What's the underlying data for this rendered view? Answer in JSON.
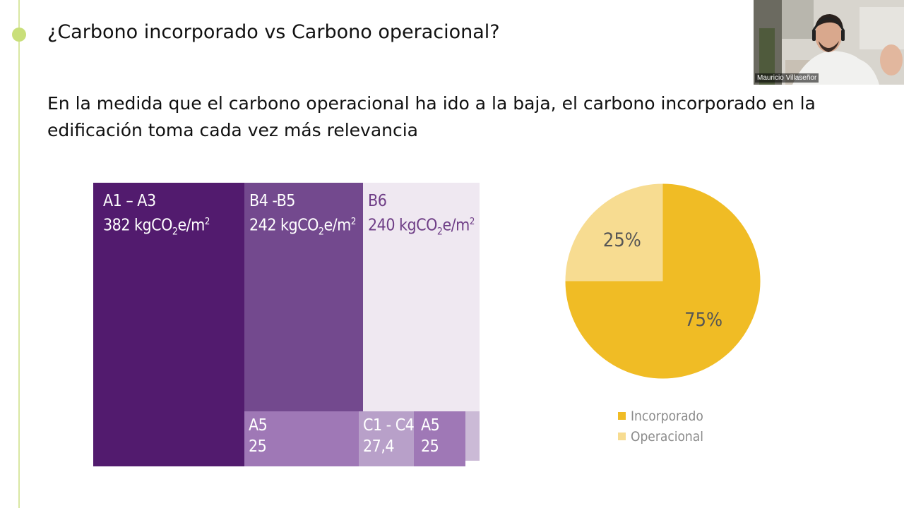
{
  "slide": {
    "title": "¿Carbono incorporado vs Carbono operacional?",
    "subtitle": "En la medida que el carbono operacional ha ido a la baja, el carbono incorporado en la edificación toma cada vez más relevancia"
  },
  "treemap": {
    "tiles": [
      {
        "label": "A1 – A3",
        "value_text": "382 kgCO",
        "unit_sub": "2",
        "unit_rest": "e/m",
        "unit_sup": "2"
      },
      {
        "label": "B4 -B5",
        "value_text": "242 kgCO",
        "unit_sub": "2",
        "unit_rest": "e/m",
        "unit_sup": "2"
      },
      {
        "label": "B6",
        "value_text": "240 kgCO",
        "unit_sub": "2",
        "unit_rest": "e/m",
        "unit_sup": "2"
      },
      {
        "label": "A5",
        "value_text": "25"
      },
      {
        "label": "C1 - C4",
        "value_text": "27,4"
      },
      {
        "label": "A5",
        "value_text": "25"
      }
    ],
    "colors": {
      "a1a3": "#521b6e",
      "b4b5": "#73498e",
      "b6": "#efe8f1",
      "a5": "#9f78b6",
      "c1c4": "#b8a0c9",
      "a5b": "#9f78b6",
      "rest": "#cbbad6"
    }
  },
  "chart_data": {
    "type": "pie",
    "title": "",
    "slices": [
      {
        "name": "Incorporado",
        "value": 75,
        "label": "75%",
        "color": "#f0bc25"
      },
      {
        "name": "Operacional",
        "value": 25,
        "label": "25%",
        "color": "#f7dc91"
      }
    ],
    "legend": "bottom"
  },
  "webcam": {
    "name": "Mauricio Villaseñor"
  }
}
